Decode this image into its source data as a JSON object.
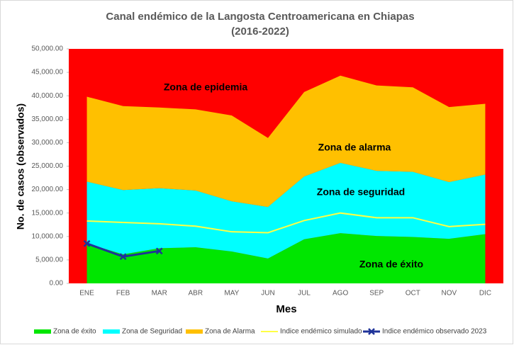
{
  "chart_data": {
    "type": "stacked_area",
    "title": "Canal endémico de la Langosta Centroamericana en Chiapas",
    "subtitle": "(2016-2022)",
    "x_label": "Mes",
    "y_label": "No. de casos (observados)",
    "background_color": "#ff0000",
    "categories": [
      "ENE",
      "FEB",
      "MAR",
      "ABR",
      "MAY",
      "JUN",
      "JUL",
      "AGO",
      "SEP",
      "OCT",
      "NOV",
      "DIC"
    ],
    "series": [
      {
        "name": "Zona de éxito",
        "color": "#00e600",
        "kind": "area",
        "values": [
          8500,
          6200,
          7500,
          7700,
          6800,
          5300,
          9400,
          10700,
          10100,
          9900,
          9500,
          10500
        ]
      },
      {
        "name": "Zona de Seguridad",
        "color": "#00ffff",
        "kind": "area",
        "values": [
          13200,
          13700,
          12800,
          12100,
          10700,
          11000,
          13400,
          15000,
          13900,
          13900,
          12100,
          12700
        ]
      },
      {
        "name": "Zona de Alarma",
        "color": "#ffc000",
        "kind": "area",
        "values": [
          18100,
          17900,
          17200,
          17300,
          18300,
          14700,
          18000,
          18600,
          18200,
          18000,
          16000,
          15100
        ]
      },
      {
        "name": "Indice endémico simulado",
        "color": "#ffff44",
        "kind": "line",
        "values": [
          13300,
          13000,
          12700,
          12200,
          11000,
          10800,
          13400,
          15000,
          14000,
          14000,
          12100,
          12600
        ]
      },
      {
        "name": "Indice endémico observado 2023",
        "color": "#1f3399",
        "kind": "line_marker",
        "values": [
          8500,
          5700,
          6900,
          null,
          null,
          null,
          null,
          null,
          null,
          null,
          null,
          null
        ]
      }
    ],
    "annotations": [
      "Zona de epidemia",
      "Zona de alarma",
      "Zona de seguridad",
      "Zona de éxito"
    ],
    "ylim": [
      0,
      50000
    ],
    "yticks": [
      {
        "value": 0,
        "label": "0.00"
      },
      {
        "value": 5000,
        "label": "5,000.00"
      },
      {
        "value": 10000,
        "label": "10,000.00"
      },
      {
        "value": 15000,
        "label": "15,000.00"
      },
      {
        "value": 20000,
        "label": "20,000.00"
      },
      {
        "value": 25000,
        "label": "25,000.00"
      },
      {
        "value": 30000,
        "label": "30,000.00"
      },
      {
        "value": 35000,
        "label": "35,000.00"
      },
      {
        "value": 40000,
        "label": "40,000.00"
      },
      {
        "value": 45000,
        "label": "45,000.00"
      },
      {
        "value": 50000,
        "label": "50,000.00"
      }
    ],
    "legend": "bottom"
  }
}
